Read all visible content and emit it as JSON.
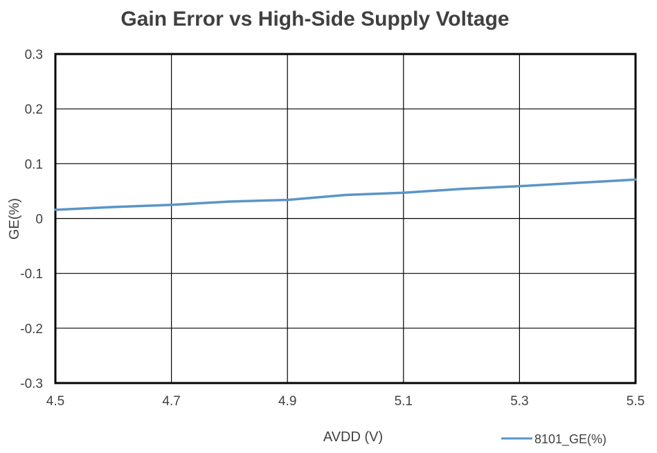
{
  "chart_data": {
    "type": "line",
    "title": "Gain Error vs High-Side Supply Voltage",
    "xlabel": "AVDD (V)",
    "ylabel": "GE(%)",
    "xlim": [
      4.5,
      5.5
    ],
    "ylim": [
      -0.3,
      0.3
    ],
    "x_ticks": [
      "4.5",
      "4.7",
      "4.9",
      "5.1",
      "5.3",
      "5.5"
    ],
    "y_ticks": [
      "0.3",
      "0.2",
      "0.1",
      "0",
      "-0.1",
      "-0.2",
      "-0.3"
    ],
    "grid": true,
    "legend_position": "bottom-right",
    "series": [
      {
        "name": "8101_GE(%)",
        "color": "#5b95c7",
        "x": [
          4.5,
          4.6,
          4.7,
          4.8,
          4.9,
          5.0,
          5.1,
          5.2,
          5.3,
          5.4,
          5.5
        ],
        "y": [
          0.016,
          0.021,
          0.025,
          0.031,
          0.034,
          0.043,
          0.047,
          0.054,
          0.059,
          0.065,
          0.071
        ]
      }
    ]
  }
}
